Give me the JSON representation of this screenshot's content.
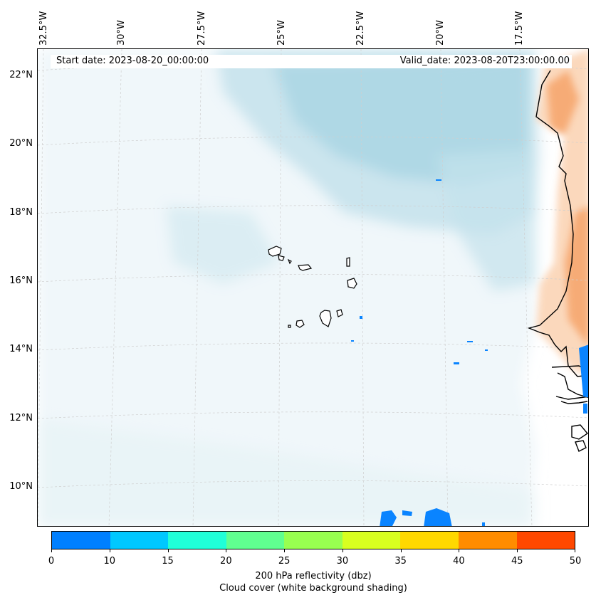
{
  "map": {
    "longitude_labels": [
      "32.5°W",
      "30°W",
      "27.5°W",
      "25°W",
      "22.5°W",
      "20°W",
      "17.5°W"
    ],
    "latitude_labels": [
      "22°N",
      "20°N",
      "18°N",
      "16°N",
      "14°N",
      "12°N",
      "10°N"
    ],
    "start_date": "Start date: 2023-08-20_00:00:00",
    "valid_date": "Valid_date: 2023-08-20T23:00:00.00",
    "colors": {
      "cloud_light": "#e3f1f6",
      "cloud_mid": "#c4e2ec",
      "cloud_dark": "#a9d5e3",
      "land_orange": "#f6a46a",
      "land_peach": "#fbd4b5",
      "reflectivity_blue": "#0a84ff",
      "coast": "#000000"
    }
  },
  "colorbar": {
    "title": "200 hPa reflectivity (dbz)",
    "subtitle": "Cloud cover (white background shading)",
    "ticks": [
      "0",
      "10",
      "15",
      "20",
      "25",
      "30",
      "35",
      "40",
      "45",
      "50"
    ],
    "colors": [
      "#0080ff",
      "#00c8ff",
      "#20ffd8",
      "#60ff90",
      "#98ff50",
      "#d8ff20",
      "#ffd800",
      "#ff8c00",
      "#ff4800"
    ]
  }
}
